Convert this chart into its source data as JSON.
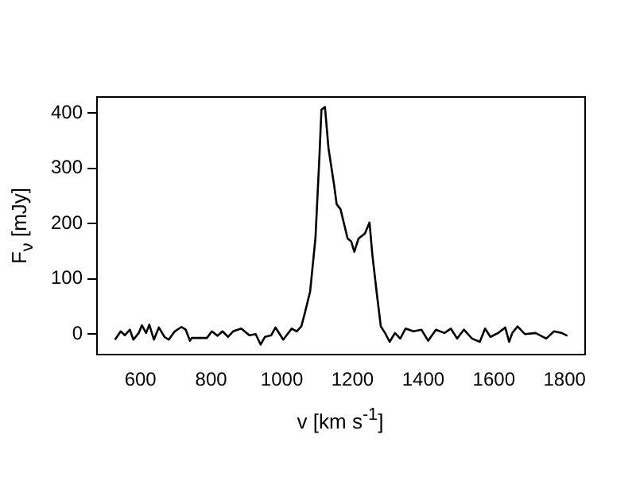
{
  "chart_data": {
    "type": "line",
    "xlabel": "v [km s$^{-1}$]",
    "ylabel": "F$_{ν}$ [mJy]",
    "x": [
      528,
      544,
      556,
      570,
      580,
      595,
      604,
      616,
      625,
      638,
      652,
      668,
      680,
      697,
      716,
      728,
      740,
      745,
      788,
      802,
      818,
      832,
      848,
      862,
      885,
      908,
      926,
      940,
      952,
      970,
      982,
      1004,
      1028,
      1042,
      1055,
      1065,
      1080,
      1095,
      1106,
      1112,
      1122,
      1132,
      1148,
      1155,
      1166,
      1186,
      1196,
      1205,
      1217,
      1235,
      1248,
      1256,
      1268,
      1280,
      1292,
      1305,
      1320,
      1335,
      1350,
      1372,
      1395,
      1414,
      1436,
      1460,
      1478,
      1496,
      1515,
      1538,
      1560,
      1575,
      1590,
      1612,
      1632,
      1643,
      1652,
      1667,
      1688,
      1718,
      1748,
      1770,
      1792,
      1808
    ],
    "series": [
      {
        "color": "#000000",
        "values": [
          -10,
          5,
          -2,
          8,
          -10,
          2,
          16,
          2,
          17,
          -10,
          12,
          -5,
          -10,
          5,
          13,
          8,
          -12,
          -7,
          -7,
          5,
          -3,
          5,
          -5,
          5,
          10,
          -2,
          0,
          -19,
          -5,
          -2,
          12,
          -10,
          10,
          5,
          14,
          38,
          77,
          173,
          317,
          406,
          411,
          336,
          269,
          235,
          226,
          173,
          168,
          149,
          173,
          182,
          202,
          144,
          77,
          14,
          2,
          -14,
          2,
          -8,
          10,
          5,
          8,
          -12,
          8,
          2,
          10,
          -8,
          8,
          -8,
          -14,
          10,
          -5,
          2,
          12,
          -14,
          2,
          14,
          0,
          2,
          -8,
          5,
          2,
          -3
        ]
      }
    ],
    "xlim": [
      477,
      1858
    ],
    "ylim": [
      -37,
      429
    ],
    "xticks": [
      600,
      800,
      1000,
      1200,
      1400,
      1600,
      1800
    ],
    "yticks": [
      0,
      100,
      200,
      300,
      400
    ],
    "grid": false,
    "legend": false,
    "marker": "none",
    "line_style": "solid"
  }
}
